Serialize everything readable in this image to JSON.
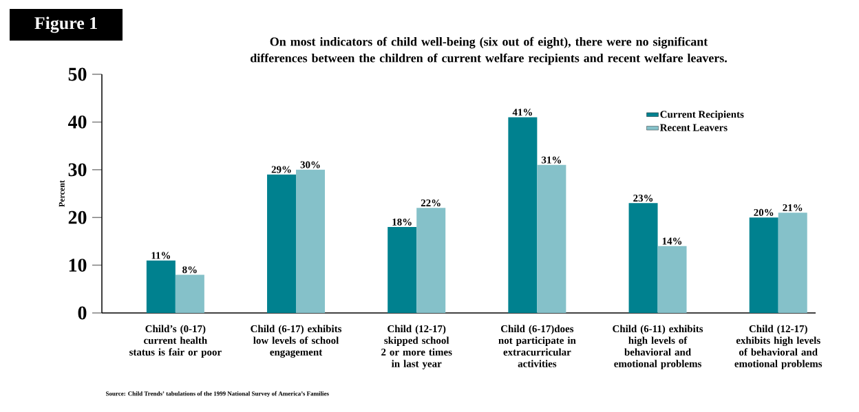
{
  "chart_data": {
    "type": "bar",
    "title": "On most indicators of child well-being (six out of eight), there were no significant differences between the children of current welfare recipients and recent welfare leavers.",
    "ylabel": "Percent",
    "categories": [
      "Child’s (0-17) current health status is fair or poor",
      "Child (6-17) exhibits low levels of school engagement",
      "Child (12-17) skipped school 2 or more times in last year",
      "Child (6-17)does not participate in extracurricular activities",
      "Child (6-11) exhibits high levels of behavioral and emotional problems",
      "Child (12-17) exhibits high levels of behavioral and emotional problems"
    ],
    "series": [
      {
        "name": "Current Recipients",
        "color": "#00818f",
        "values": [
          11,
          29,
          18,
          41,
          23,
          20
        ],
        "value_labels": [
          "11%",
          "29%",
          "18%",
          "41%",
          "23%",
          "20%"
        ]
      },
      {
        "name": "Recent Leavers",
        "color": "#85c1c9",
        "values": [
          8,
          30,
          22,
          31,
          14,
          21
        ],
        "value_labels": [
          "8%",
          "30%",
          "22%",
          "31%",
          "14%",
          "21%"
        ]
      }
    ],
    "ylim": [
      0,
      50
    ],
    "yticks": [
      0,
      10,
      20,
      30,
      40,
      50
    ],
    "legend": "top right",
    "grid": false,
    "annotations": [
      "Figure 1",
      "Source: Child Trends’ tabulations of the 1999 National Survey of America’s Families"
    ]
  }
}
